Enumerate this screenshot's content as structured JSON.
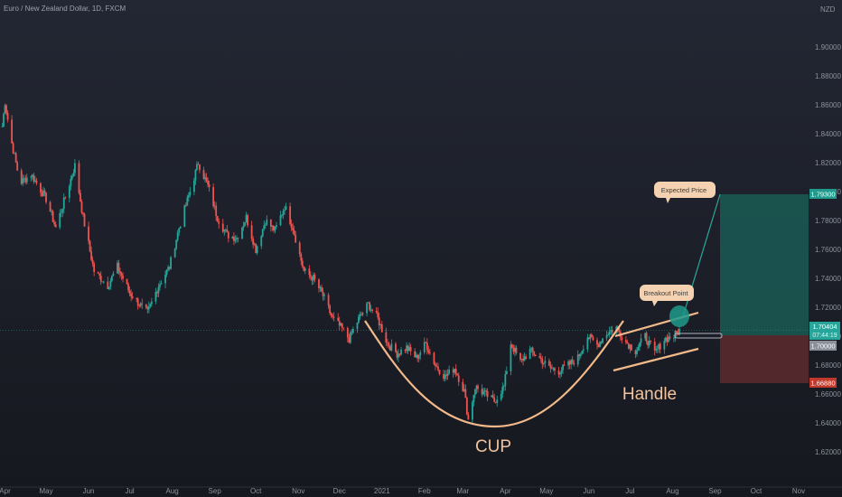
{
  "header": {
    "symbol": "Euro / New Zealand Dollar, 1D, FXCM",
    "currency": "NZD"
  },
  "chart_data": {
    "type": "candlestick",
    "x_ticks": [
      "Apr",
      "May",
      "Jun",
      "Jul",
      "Aug",
      "Sep",
      "Oct",
      "Nov",
      "Dec",
      "2021",
      "Feb",
      "Mar",
      "Apr",
      "May",
      "Jun",
      "Jul",
      "Aug",
      "Sep",
      "Oct",
      "Nov"
    ],
    "y_ticks": [
      "1.90000",
      "1.88000",
      "1.86000",
      "1.84000",
      "1.82000",
      "1.80000",
      "1.78000",
      "1.76000",
      "1.74000",
      "1.72000",
      "1.70000",
      "1.68000",
      "1.66000",
      "1.64000",
      "1.62000"
    ],
    "ylim": [
      1.6075,
      1.92
    ],
    "price_labels": {
      "target": "1.79300",
      "current": "1.70404",
      "countdown": "07:44:19",
      "entry": "1.70000",
      "stop": "1.66880"
    },
    "levels": {
      "target": 1.793,
      "current": 1.70404,
      "entry": 1.7,
      "stop": 1.6688
    },
    "annotations": {
      "expected_price": "Expected Price",
      "breakout_point": "Breakout Point",
      "cup": "CUP",
      "handle": "Handle"
    },
    "anchors": [
      {
        "date": "2020-03-30",
        "close": 1.845
      },
      {
        "date": "2020-04-01",
        "close": 1.862
      },
      {
        "date": "2020-04-05",
        "close": 1.838
      },
      {
        "date": "2020-04-12",
        "close": 1.806
      },
      {
        "date": "2020-04-20",
        "close": 1.812
      },
      {
        "date": "2020-05-01",
        "close": 1.795
      },
      {
        "date": "2020-05-08",
        "close": 1.775
      },
      {
        "date": "2020-05-15",
        "close": 1.796
      },
      {
        "date": "2020-05-22",
        "close": 1.818
      },
      {
        "date": "2020-05-28",
        "close": 1.782
      },
      {
        "date": "2020-06-05",
        "close": 1.745
      },
      {
        "date": "2020-06-15",
        "close": 1.735
      },
      {
        "date": "2020-06-22",
        "close": 1.748
      },
      {
        "date": "2020-07-01",
        "close": 1.73
      },
      {
        "date": "2020-07-10",
        "close": 1.72
      },
      {
        "date": "2020-07-14",
        "close": 1.716
      },
      {
        "date": "2020-07-22",
        "close": 1.735
      },
      {
        "date": "2020-07-30",
        "close": 1.748
      },
      {
        "date": "2020-08-06",
        "close": 1.775
      },
      {
        "date": "2020-08-14",
        "close": 1.8
      },
      {
        "date": "2020-08-20",
        "close": 1.82
      },
      {
        "date": "2020-08-27",
        "close": 1.804
      },
      {
        "date": "2020-09-03",
        "close": 1.782
      },
      {
        "date": "2020-09-10",
        "close": 1.77
      },
      {
        "date": "2020-09-17",
        "close": 1.768
      },
      {
        "date": "2020-09-24",
        "close": 1.782
      },
      {
        "date": "2020-10-01",
        "close": 1.76
      },
      {
        "date": "2020-10-08",
        "close": 1.78
      },
      {
        "date": "2020-10-15",
        "close": 1.773
      },
      {
        "date": "2020-10-22",
        "close": 1.79
      },
      {
        "date": "2020-10-28",
        "close": 1.775
      },
      {
        "date": "2020-11-05",
        "close": 1.745
      },
      {
        "date": "2020-11-12",
        "close": 1.74
      },
      {
        "date": "2020-11-19",
        "close": 1.728
      },
      {
        "date": "2020-11-26",
        "close": 1.712
      },
      {
        "date": "2020-12-03",
        "close": 1.705
      },
      {
        "date": "2020-12-08",
        "close": 1.698
      },
      {
        "date": "2020-12-15",
        "close": 1.712
      },
      {
        "date": "2020-12-22",
        "close": 1.722
      },
      {
        "date": "2020-12-29",
        "close": 1.712
      },
      {
        "date": "2021-01-05",
        "close": 1.695
      },
      {
        "date": "2021-01-12",
        "close": 1.688
      },
      {
        "date": "2021-01-19",
        "close": 1.692
      },
      {
        "date": "2021-01-26",
        "close": 1.685
      },
      {
        "date": "2021-02-02",
        "close": 1.695
      },
      {
        "date": "2021-02-09",
        "close": 1.68
      },
      {
        "date": "2021-02-16",
        "close": 1.672
      },
      {
        "date": "2021-02-23",
        "close": 1.678
      },
      {
        "date": "2021-03-02",
        "close": 1.662
      },
      {
        "date": "2021-03-05",
        "close": 1.642
      },
      {
        "date": "2021-03-10",
        "close": 1.665
      },
      {
        "date": "2021-03-17",
        "close": 1.66
      },
      {
        "date": "2021-03-24",
        "close": 1.655
      },
      {
        "date": "2021-03-31",
        "close": 1.665
      },
      {
        "date": "2021-04-05",
        "close": 1.695
      },
      {
        "date": "2021-04-12",
        "close": 1.682
      },
      {
        "date": "2021-04-19",
        "close": 1.69
      },
      {
        "date": "2021-04-26",
        "close": 1.685
      },
      {
        "date": "2021-05-03",
        "close": 1.678
      },
      {
        "date": "2021-05-10",
        "close": 1.676
      },
      {
        "date": "2021-05-17",
        "close": 1.68
      },
      {
        "date": "2021-05-24",
        "close": 1.685
      },
      {
        "date": "2021-05-31",
        "close": 1.7
      },
      {
        "date": "2021-06-07",
        "close": 1.694
      },
      {
        "date": "2021-06-14",
        "close": 1.702
      },
      {
        "date": "2021-06-21",
        "close": 1.706
      },
      {
        "date": "2021-06-28",
        "close": 1.696
      },
      {
        "date": "2021-07-05",
        "close": 1.69
      },
      {
        "date": "2021-07-12",
        "close": 1.7
      },
      {
        "date": "2021-07-19",
        "close": 1.688
      },
      {
        "date": "2021-07-26",
        "close": 1.698
      },
      {
        "date": "2021-08-02",
        "close": 1.7
      },
      {
        "date": "2021-08-06",
        "close": 1.704
      }
    ]
  }
}
